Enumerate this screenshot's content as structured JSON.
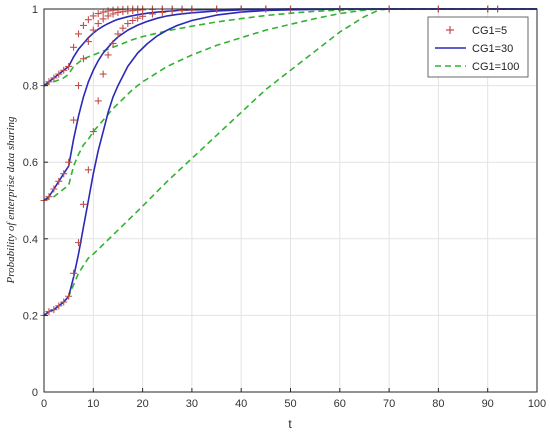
{
  "chart_data": {
    "type": "line",
    "title": "",
    "xlabel": "t",
    "ylabel": "Probability of enterprise data sharing",
    "xlim": [
      0,
      100
    ],
    "ylim": [
      0,
      1
    ],
    "xticks": [
      0,
      10,
      20,
      30,
      40,
      50,
      60,
      70,
      80,
      90,
      100
    ],
    "yticks": [
      0,
      0.2,
      0.4,
      0.6,
      0.8,
      1
    ],
    "ytick_labels": [
      "0",
      "0.2",
      "0.4",
      "0.6",
      "0.8",
      "1"
    ],
    "grid": true,
    "legend_position": "top-right",
    "series": [
      {
        "name": "CG1=5",
        "style": "plus-markers",
        "color": "#c0504d",
        "curves": [
          {
            "x": [
              0,
              1,
              2,
              3,
              4,
              5,
              6,
              7,
              8,
              9,
              10,
              11,
              12,
              13,
              14,
              15,
              16,
              17,
              18,
              19,
              20,
              22,
              24,
              26,
              28,
              30,
              35,
              40,
              45,
              50,
              60,
              70,
              80,
              90,
              92
            ],
            "y": [
              0.2,
              0.21,
              0.215,
              0.225,
              0.235,
              0.25,
              0.31,
              0.39,
              0.49,
              0.58,
              0.68,
              0.76,
              0.83,
              0.88,
              0.91,
              0.935,
              0.95,
              0.962,
              0.97,
              0.976,
              0.981,
              0.987,
              0.991,
              0.994,
              0.996,
              0.997,
              0.999,
              1,
              1,
              1,
              1,
              1,
              1,
              1,
              1
            ]
          },
          {
            "x": [
              0,
              1,
              2,
              3,
              4,
              5,
              6,
              7,
              8,
              9,
              10,
              11,
              12,
              13,
              14,
              15,
              16,
              17,
              18,
              19,
              20,
              22,
              24,
              26,
              28,
              30,
              35,
              40,
              45,
              50,
              60,
              70,
              80,
              90,
              92
            ],
            "y": [
              0.5,
              0.51,
              0.53,
              0.55,
              0.57,
              0.6,
              0.71,
              0.8,
              0.87,
              0.915,
              0.945,
              0.962,
              0.974,
              0.982,
              0.987,
              0.991,
              0.993,
              0.995,
              0.996,
              0.997,
              0.998,
              0.999,
              1,
              1,
              1,
              1,
              1,
              1,
              1,
              1,
              1,
              1,
              1,
              1,
              1
            ]
          },
          {
            "x": [
              0,
              1,
              2,
              3,
              4,
              5,
              6,
              7,
              8,
              9,
              10,
              11,
              12,
              13,
              14,
              15,
              16,
              17,
              18,
              19,
              20,
              22,
              24,
              26,
              28,
              30,
              35,
              40,
              45,
              50,
              60,
              70,
              80,
              90,
              92
            ],
            "y": [
              0.8,
              0.81,
              0.82,
              0.83,
              0.84,
              0.85,
              0.9,
              0.935,
              0.957,
              0.972,
              0.982,
              0.988,
              0.992,
              0.995,
              0.997,
              0.998,
              0.999,
              1,
              1,
              1,
              1,
              1,
              1,
              1,
              1,
              1,
              1,
              1,
              1,
              1,
              1,
              1,
              1,
              1,
              1
            ]
          }
        ]
      },
      {
        "name": "CG1=30",
        "style": "solid",
        "color": "#2a2ab8",
        "curves": [
          {
            "x": [
              0,
              1,
              2,
              3,
              4,
              5,
              6,
              7,
              8,
              9,
              10,
              11,
              12,
              13,
              14,
              15,
              17,
              19,
              21,
              23,
              25,
              27,
              30,
              35,
              40,
              45,
              50,
              55,
              60,
              70,
              80,
              90,
              100
            ],
            "y": [
              0.2,
              0.21,
              0.215,
              0.225,
              0.235,
              0.25,
              0.3,
              0.36,
              0.43,
              0.5,
              0.57,
              0.63,
              0.68,
              0.73,
              0.77,
              0.8,
              0.85,
              0.885,
              0.91,
              0.93,
              0.945,
              0.957,
              0.97,
              0.984,
              0.992,
              0.996,
              0.998,
              0.999,
              1,
              1,
              1,
              1,
              1
            ]
          },
          {
            "x": [
              0,
              1,
              2,
              3,
              4,
              5,
              6,
              7,
              8,
              9,
              10,
              11,
              12,
              13,
              14,
              15,
              17,
              19,
              21,
              23,
              25,
              27,
              30,
              35,
              40,
              45,
              50,
              55,
              60,
              70,
              80,
              90,
              100
            ],
            "y": [
              0.5,
              0.51,
              0.53,
              0.55,
              0.57,
              0.59,
              0.66,
              0.72,
              0.77,
              0.81,
              0.84,
              0.865,
              0.885,
              0.9,
              0.915,
              0.927,
              0.945,
              0.958,
              0.968,
              0.976,
              0.982,
              0.986,
              0.99,
              0.995,
              0.998,
              0.999,
              1,
              1,
              1,
              1,
              1,
              1,
              1
            ]
          },
          {
            "x": [
              0,
              1,
              2,
              3,
              4,
              5,
              6,
              7,
              8,
              9,
              10,
              11,
              12,
              13,
              14,
              15,
              17,
              19,
              21,
              23,
              25,
              27,
              30,
              35,
              40,
              45,
              50,
              55,
              60,
              70,
              80,
              90,
              100
            ],
            "y": [
              0.8,
              0.81,
              0.82,
              0.83,
              0.84,
              0.85,
              0.875,
              0.895,
              0.91,
              0.925,
              0.937,
              0.947,
              0.955,
              0.962,
              0.968,
              0.973,
              0.98,
              0.985,
              0.989,
              0.992,
              0.994,
              0.996,
              0.998,
              0.999,
              1,
              1,
              1,
              1,
              1,
              1,
              1,
              1,
              1
            ]
          }
        ]
      },
      {
        "name": "CG1=100",
        "style": "dashed",
        "color": "#33b233",
        "curves": [
          {
            "x": [
              0,
              1,
              2,
              3,
              4,
              5,
              6,
              7,
              8,
              9,
              10,
              12,
              14,
              16,
              18,
              20,
              25,
              30,
              35,
              40,
              45,
              50,
              55,
              60,
              65,
              68,
              70,
              80,
              90,
              100
            ],
            "y": [
              0.2,
              0.21,
              0.215,
              0.225,
              0.235,
              0.25,
              0.28,
              0.31,
              0.33,
              0.35,
              0.36,
              0.385,
              0.41,
              0.435,
              0.46,
              0.485,
              0.55,
              0.61,
              0.67,
              0.73,
              0.79,
              0.84,
              0.89,
              0.94,
              0.98,
              0.998,
              1,
              1,
              1,
              1
            ]
          },
          {
            "x": [
              0,
              1,
              2,
              3,
              4,
              5,
              6,
              7,
              8,
              9,
              10,
              12,
              14,
              16,
              18,
              20,
              25,
              30,
              35,
              40,
              45,
              50,
              55,
              60,
              65,
              68,
              70,
              80,
              90,
              100
            ],
            "y": [
              0.5,
              0.505,
              0.51,
              0.52,
              0.53,
              0.54,
              0.59,
              0.62,
              0.645,
              0.66,
              0.68,
              0.71,
              0.74,
              0.765,
              0.79,
              0.81,
              0.85,
              0.88,
              0.905,
              0.925,
              0.945,
              0.96,
              0.975,
              0.988,
              0.997,
              1,
              1,
              1,
              1,
              1
            ]
          },
          {
            "x": [
              0,
              1,
              2,
              3,
              4,
              5,
              6,
              7,
              8,
              9,
              10,
              12,
              14,
              16,
              18,
              20,
              25,
              30,
              35,
              40,
              45,
              50,
              55,
              60,
              65,
              68,
              70,
              80,
              90,
              100
            ],
            "y": [
              0.8,
              0.805,
              0.81,
              0.815,
              0.82,
              0.83,
              0.85,
              0.86,
              0.87,
              0.875,
              0.88,
              0.89,
              0.9,
              0.91,
              0.92,
              0.928,
              0.943,
              0.955,
              0.966,
              0.975,
              0.983,
              0.989,
              0.994,
              0.997,
              0.999,
              1,
              1,
              1,
              1,
              1
            ]
          }
        ]
      }
    ]
  }
}
